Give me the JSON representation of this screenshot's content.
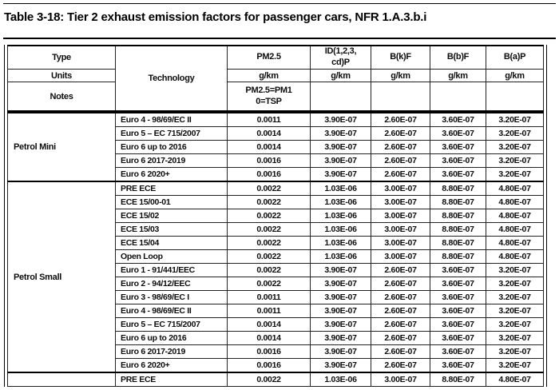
{
  "title": "Table 3-18: Tier 2 exhaust emission factors for passenger cars, NFR 1.A.3.b.i",
  "table": {
    "header": {
      "row_labels": [
        "Type",
        "Units",
        "Notes"
      ],
      "technology_label": "Technology",
      "columns": [
        {
          "name": "PM2.5",
          "unit": "g/km",
          "note": "PM2.5=PM1\n0=TSP"
        },
        {
          "name": "ID(1,2,3,\ncd)P",
          "unit": "g/km",
          "note": ""
        },
        {
          "name": "B(k)F",
          "unit": "g/km",
          "note": ""
        },
        {
          "name": "B(b)F",
          "unit": "g/km",
          "note": ""
        },
        {
          "name": "B(a)P",
          "unit": "g/km",
          "note": ""
        }
      ]
    },
    "sections": [
      {
        "type": "Petrol Mini",
        "rows": [
          {
            "technology": "Euro 4 - 98/69/EC II",
            "values": [
              "0.0011",
              "3.90E-07",
              "2.60E-07",
              "3.60E-07",
              "3.20E-07"
            ]
          },
          {
            "technology": "Euro 5 – EC 715/2007",
            "values": [
              "0.0014",
              "3.90E-07",
              "2.60E-07",
              "3.60E-07",
              "3.20E-07"
            ]
          },
          {
            "technology": "Euro 6 up to 2016",
            "values": [
              "0.0014",
              "3.90E-07",
              "2.60E-07",
              "3.60E-07",
              "3.20E-07"
            ]
          },
          {
            "technology": "Euro 6 2017-2019",
            "values": [
              "0.0016",
              "3.90E-07",
              "2.60E-07",
              "3.60E-07",
              "3.20E-07"
            ]
          },
          {
            "technology": "Euro 6 2020+",
            "values": [
              "0.0016",
              "3.90E-07",
              "2.60E-07",
              "3.60E-07",
              "3.20E-07"
            ]
          }
        ]
      },
      {
        "type": "Petrol Small",
        "rows": [
          {
            "technology": "PRE ECE",
            "values": [
              "0.0022",
              "1.03E-06",
              "3.00E-07",
              "8.80E-07",
              "4.80E-07"
            ]
          },
          {
            "technology": "ECE 15/00-01",
            "values": [
              "0.0022",
              "1.03E-06",
              "3.00E-07",
              "8.80E-07",
              "4.80E-07"
            ]
          },
          {
            "technology": "ECE 15/02",
            "values": [
              "0.0022",
              "1.03E-06",
              "3.00E-07",
              "8.80E-07",
              "4.80E-07"
            ]
          },
          {
            "technology": "ECE 15/03",
            "values": [
              "0.0022",
              "1.03E-06",
              "3.00E-07",
              "8.80E-07",
              "4.80E-07"
            ]
          },
          {
            "technology": "ECE 15/04",
            "values": [
              "0.0022",
              "1.03E-06",
              "3.00E-07",
              "8.80E-07",
              "4.80E-07"
            ]
          },
          {
            "technology": "Open Loop",
            "values": [
              "0.0022",
              "1.03E-06",
              "3.00E-07",
              "8.80E-07",
              "4.80E-07"
            ]
          },
          {
            "technology": "Euro 1 - 91/441/EEC",
            "values": [
              "0.0022",
              "3.90E-07",
              "2.60E-07",
              "3.60E-07",
              "3.20E-07"
            ]
          },
          {
            "technology": "Euro 2 - 94/12/EEC",
            "values": [
              "0.0022",
              "3.90E-07",
              "2.60E-07",
              "3.60E-07",
              "3.20E-07"
            ]
          },
          {
            "technology": "Euro 3 - 98/69/EC I",
            "values": [
              "0.0011",
              "3.90E-07",
              "2.60E-07",
              "3.60E-07",
              "3.20E-07"
            ]
          },
          {
            "technology": "Euro 4 - 98/69/EC II",
            "values": [
              "0.0011",
              "3.90E-07",
              "2.60E-07",
              "3.60E-07",
              "3.20E-07"
            ]
          },
          {
            "technology": "Euro 5 – EC 715/2007",
            "values": [
              "0.0014",
              "3.90E-07",
              "2.60E-07",
              "3.60E-07",
              "3.20E-07"
            ]
          },
          {
            "technology": "Euro 6 up to 2016",
            "values": [
              "0.0014",
              "3.90E-07",
              "2.60E-07",
              "3.60E-07",
              "3.20E-07"
            ]
          },
          {
            "technology": "Euro 6 2017-2019",
            "values": [
              "0.0016",
              "3.90E-07",
              "2.60E-07",
              "3.60E-07",
              "3.20E-07"
            ]
          },
          {
            "technology": "Euro 6 2020+",
            "values": [
              "0.0016",
              "3.90E-07",
              "2.60E-07",
              "3.60E-07",
              "3.20E-07"
            ]
          }
        ]
      },
      {
        "type": "",
        "rows": [
          {
            "technology": "PRE ECE",
            "values": [
              "0.0022",
              "1.03E-06",
              "3.00E-07",
              "8.80E-07",
              "4.80E-07"
            ]
          }
        ]
      }
    ]
  }
}
